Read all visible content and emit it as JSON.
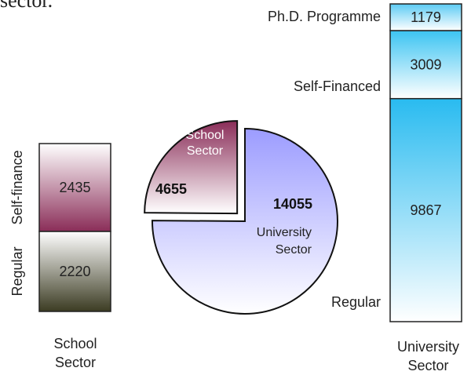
{
  "header_text": "sector.",
  "chart_data": [
    {
      "type": "bar",
      "stacked": true,
      "categories": [
        "School Sector"
      ],
      "series": [
        {
          "name": "Regular",
          "color": "#3b3b22",
          "values": [
            2220
          ]
        },
        {
          "name": "Self-finance",
          "color": "#8a2d58",
          "values": [
            2435
          ]
        }
      ]
    },
    {
      "type": "pie",
      "categories": [
        "School Sector",
        "University Sector"
      ],
      "values": [
        4655,
        14055
      ],
      "colors": [
        "#8a2d58",
        "#9c9cff"
      ],
      "exploded": [
        true,
        false
      ]
    },
    {
      "type": "bar",
      "stacked": true,
      "categories": [
        "University Sector"
      ],
      "series": [
        {
          "name": "Regular",
          "color": "#29bbf0",
          "values": [
            9867
          ]
        },
        {
          "name": "Self-Financed",
          "color": "#3cc4f2",
          "values": [
            3009
          ]
        },
        {
          "name": "Ph.D. Programme",
          "color": "#5ccbf4",
          "values": [
            1179
          ]
        }
      ]
    }
  ]
}
